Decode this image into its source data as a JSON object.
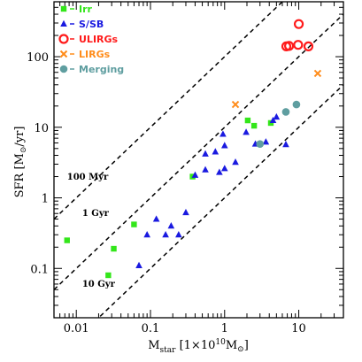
{
  "chart_data": {
    "type": "scatter",
    "xlabel": {
      "main": "M",
      "sub": "star",
      "rest": " [1×10",
      "sup": "10",
      "tail": "M",
      "sym": "⊙",
      "close": "]"
    },
    "ylabel": {
      "main": "SFR [M",
      "sym": "⊙",
      "rest": "/yr]"
    },
    "x_scale": "log",
    "y_scale": "log",
    "xlim": [
      0.005,
      40
    ],
    "ylim": [
      0.02,
      600
    ],
    "x_ticks": [
      {
        "v": 0.01,
        "label": "0.01"
      },
      {
        "v": 0.1,
        "label": "0.1"
      },
      {
        "v": 1,
        "label": "1"
      },
      {
        "v": 10,
        "label": "10"
      }
    ],
    "y_ticks": [
      {
        "v": 0.1,
        "label": "0.1"
      },
      {
        "v": 1,
        "label": "1"
      },
      {
        "v": 10,
        "label": "10"
      },
      {
        "v": 100,
        "label": "100"
      }
    ],
    "grid": false,
    "legend_position": "top-left",
    "legend": [
      {
        "name": "Irr",
        "color": "#33e61a",
        "marker": "square"
      },
      {
        "name": "S/SB",
        "color": "#1a1ae0",
        "marker": "triangle"
      },
      {
        "name": "ULIRGs",
        "color": "#ff1a1a",
        "marker": "circle-open"
      },
      {
        "name": "LIRGs",
        "color": "#ff8c1a",
        "marker": "cross"
      },
      {
        "name": "Merging",
        "color": "#5f9ea0",
        "marker": "circle"
      }
    ],
    "reference_lines": [
      {
        "label": "100 Myr",
        "style": "dashed",
        "points": [
          [
            0.005,
            0.5
          ],
          [
            40,
            4000
          ]
        ],
        "label_at": [
          0.0075,
          1.8
        ]
      },
      {
        "label": "1 Gyr",
        "style": "dashed",
        "points": [
          [
            0.005,
            0.05
          ],
          [
            40,
            400
          ]
        ],
        "label_at": [
          0.012,
          0.55
        ]
      },
      {
        "label": "10 Gyr",
        "style": "dashed",
        "points": [
          [
            0.005,
            0.005
          ],
          [
            40,
            40
          ]
        ],
        "label_at": [
          0.012,
          0.055
        ]
      }
    ],
    "series": [
      {
        "name": "Irr",
        "color": "#33e61a",
        "marker": "square",
        "points": [
          [
            0.0075,
            0.25
          ],
          [
            0.027,
            0.08
          ],
          [
            0.032,
            0.19
          ],
          [
            0.06,
            0.42
          ],
          [
            0.37,
            2.0
          ],
          [
            2.05,
            12.5
          ],
          [
            2.5,
            10.5
          ],
          [
            4.2,
            11.5
          ]
        ]
      },
      {
        "name": "S/SB",
        "color": "#1a1ae0",
        "marker": "triangle",
        "points": [
          [
            0.07,
            0.11
          ],
          [
            0.09,
            0.3
          ],
          [
            0.12,
            0.5
          ],
          [
            0.16,
            0.3
          ],
          [
            0.19,
            0.4
          ],
          [
            0.24,
            0.3
          ],
          [
            0.3,
            0.62
          ],
          [
            0.4,
            2.1
          ],
          [
            0.55,
            2.5
          ],
          [
            0.85,
            2.3
          ],
          [
            1.0,
            2.6
          ],
          [
            1.4,
            3.2
          ],
          [
            0.55,
            4.2
          ],
          [
            0.75,
            4.5
          ],
          [
            1.0,
            5.5
          ],
          [
            0.95,
            8.0
          ],
          [
            1.95,
            8.5
          ],
          [
            2.6,
            5.8
          ],
          [
            3.6,
            6.2
          ],
          [
            4.5,
            12.5
          ],
          [
            5.0,
            14.0
          ],
          [
            6.7,
            5.7
          ]
        ]
      },
      {
        "name": "ULIRGs",
        "color": "#ff1a1a",
        "marker": "circle-open",
        "points": [
          [
            10.0,
            290
          ],
          [
            6.8,
            140
          ],
          [
            7.4,
            142
          ],
          [
            9.8,
            147
          ],
          [
            13.5,
            140
          ]
        ]
      },
      {
        "name": "LIRGs",
        "color": "#ff8c1a",
        "marker": "cross",
        "points": [
          [
            1.4,
            21
          ],
          [
            18.0,
            58
          ]
        ]
      },
      {
        "name": "Merging",
        "color": "#5f9ea0",
        "marker": "circle",
        "points": [
          [
            3.0,
            5.8
          ],
          [
            6.7,
            16.5
          ],
          [
            9.3,
            21
          ]
        ]
      }
    ]
  }
}
